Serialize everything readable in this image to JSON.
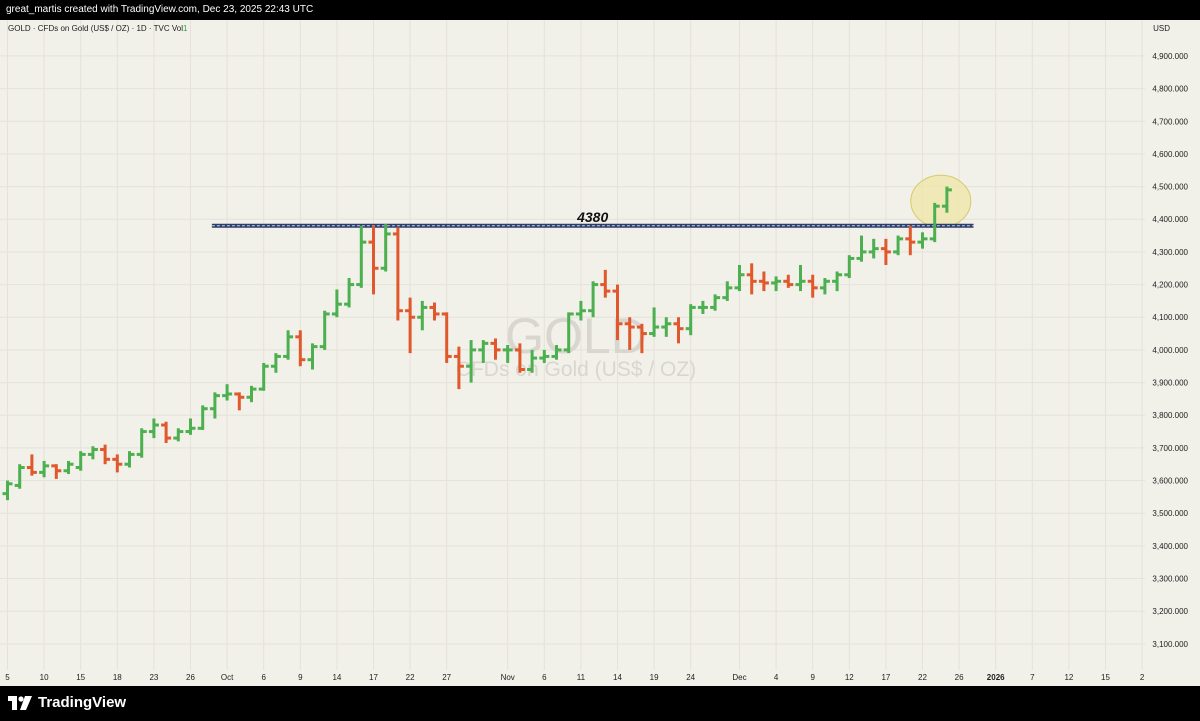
{
  "header": {
    "attribution": "great_martis created with TradingView.com, Dec 23, 2025 22:43 UTC"
  },
  "legend": {
    "text": "GOLD · CFDs on Gold (US$ / OZ) · 1D · TVC  Vol",
    "vol_mark": "1"
  },
  "currency": "USD",
  "watermark": {
    "symbol": "GOLD",
    "description": "CFDs on Gold (US$ / OZ)"
  },
  "footer": {
    "brand": "TradingView"
  },
  "colors": {
    "up": "#4caf50",
    "down": "#e0582b",
    "level_line": "#2c3e6b",
    "highlight": "#efe7a6",
    "background": "#f1f0e9"
  },
  "chart_data": {
    "type": "ohlc",
    "symbol": "GOLD",
    "interval": "1D",
    "y_axis": {
      "ticks": [
        3100,
        3200,
        3300,
        3400,
        3500,
        3600,
        3700,
        3800,
        3900,
        4000,
        4100,
        4200,
        4300,
        4400,
        4500,
        4600,
        4700,
        4800,
        4900
      ],
      "tick_labels": [
        "3,100.000",
        "3,200.000",
        "3,300.000",
        "3,400.000",
        "3,500.000",
        "3,600.000",
        "3,700.000",
        "3,800.000",
        "3,900.000",
        "4,000.000",
        "4,100.000",
        "4,200.000",
        "4,300.000",
        "4,400.000",
        "4,500.000",
        "4,600.000",
        "4,700.000",
        "4,800.000",
        "4,900.000"
      ],
      "ylim": [
        3020,
        5010
      ]
    },
    "x_axis": {
      "ticks": [
        {
          "label": "5",
          "index": 0
        },
        {
          "label": "10",
          "index": 3
        },
        {
          "label": "15",
          "index": 6
        },
        {
          "label": "18",
          "index": 9
        },
        {
          "label": "23",
          "index": 12
        },
        {
          "label": "26",
          "index": 15
        },
        {
          "label": "Oct",
          "index": 18
        },
        {
          "label": "6",
          "index": 21
        },
        {
          "label": "9",
          "index": 24
        },
        {
          "label": "14",
          "index": 27
        },
        {
          "label": "17",
          "index": 30
        },
        {
          "label": "22",
          "index": 33
        },
        {
          "label": "27",
          "index": 36
        },
        {
          "label": "Nov",
          "index": 41
        },
        {
          "label": "6",
          "index": 44
        },
        {
          "label": "11",
          "index": 47
        },
        {
          "label": "14",
          "index": 50
        },
        {
          "label": "19",
          "index": 53
        },
        {
          "label": "24",
          "index": 56
        },
        {
          "label": "Dec",
          "index": 60
        },
        {
          "label": "4",
          "index": 63
        },
        {
          "label": "9",
          "index": 66
        },
        {
          "label": "12",
          "index": 69
        },
        {
          "label": "17",
          "index": 72
        },
        {
          "label": "22",
          "index": 75
        },
        {
          "label": "26",
          "index": 78
        },
        {
          "label": "2026",
          "index": 81
        },
        {
          "label": "7",
          "index": 84
        },
        {
          "label": "12",
          "index": 87
        },
        {
          "label": "15",
          "index": 90
        },
        {
          "label": "2",
          "index": 93
        }
      ]
    },
    "bars": [
      {
        "date": "Sep 5",
        "o": 3560,
        "h": 3600,
        "l": 3540,
        "c": 3590
      },
      {
        "date": "Sep 8",
        "o": 3585,
        "h": 3650,
        "l": 3575,
        "c": 3640
      },
      {
        "date": "Sep 9",
        "o": 3640,
        "h": 3680,
        "l": 3615,
        "c": 3625
      },
      {
        "date": "Sep 10",
        "o": 3625,
        "h": 3660,
        "l": 3610,
        "c": 3645
      },
      {
        "date": "Sep 11",
        "o": 3645,
        "h": 3650,
        "l": 3605,
        "c": 3630
      },
      {
        "date": "Sep 12",
        "o": 3630,
        "h": 3660,
        "l": 3620,
        "c": 3650
      },
      {
        "date": "Sep 15",
        "o": 3640,
        "h": 3690,
        "l": 3630,
        "c": 3680
      },
      {
        "date": "Sep 16",
        "o": 3680,
        "h": 3705,
        "l": 3665,
        "c": 3695
      },
      {
        "date": "Sep 17",
        "o": 3695,
        "h": 3710,
        "l": 3650,
        "c": 3665
      },
      {
        "date": "Sep 18",
        "o": 3665,
        "h": 3680,
        "l": 3625,
        "c": 3650
      },
      {
        "date": "Sep 19",
        "o": 3650,
        "h": 3690,
        "l": 3640,
        "c": 3680
      },
      {
        "date": "Sep 22",
        "o": 3680,
        "h": 3760,
        "l": 3670,
        "c": 3750
      },
      {
        "date": "Sep 23",
        "o": 3750,
        "h": 3790,
        "l": 3730,
        "c": 3770
      },
      {
        "date": "Sep 24",
        "o": 3770,
        "h": 3780,
        "l": 3715,
        "c": 3730
      },
      {
        "date": "Sep 25",
        "o": 3730,
        "h": 3760,
        "l": 3720,
        "c": 3750
      },
      {
        "date": "Sep 26",
        "o": 3750,
        "h": 3790,
        "l": 3740,
        "c": 3760
      },
      {
        "date": "Sep 29",
        "o": 3760,
        "h": 3830,
        "l": 3755,
        "c": 3820
      },
      {
        "date": "Sep 30",
        "o": 3820,
        "h": 3870,
        "l": 3790,
        "c": 3860
      },
      {
        "date": "Oct 1",
        "o": 3860,
        "h": 3895,
        "l": 3845,
        "c": 3865
      },
      {
        "date": "Oct 2",
        "o": 3865,
        "h": 3870,
        "l": 3815,
        "c": 3855
      },
      {
        "date": "Oct 3",
        "o": 3855,
        "h": 3890,
        "l": 3840,
        "c": 3880
      },
      {
        "date": "Oct 6",
        "o": 3880,
        "h": 3960,
        "l": 3875,
        "c": 3950
      },
      {
        "date": "Oct 7",
        "o": 3950,
        "h": 3990,
        "l": 3930,
        "c": 3980
      },
      {
        "date": "Oct 8",
        "o": 3980,
        "h": 4060,
        "l": 3970,
        "c": 4040
      },
      {
        "date": "Oct 9",
        "o": 4040,
        "h": 4060,
        "l": 3950,
        "c": 3970
      },
      {
        "date": "Oct 10",
        "o": 3970,
        "h": 4020,
        "l": 3940,
        "c": 4010
      },
      {
        "date": "Oct 13",
        "o": 4010,
        "h": 4120,
        "l": 4000,
        "c": 4110
      },
      {
        "date": "Oct 14",
        "o": 4110,
        "h": 4185,
        "l": 4100,
        "c": 4140
      },
      {
        "date": "Oct 15",
        "o": 4140,
        "h": 4220,
        "l": 4130,
        "c": 4200
      },
      {
        "date": "Oct 16",
        "o": 4200,
        "h": 4380,
        "l": 4190,
        "c": 4330
      },
      {
        "date": "Oct 17",
        "o": 4330,
        "h": 4380,
        "l": 4170,
        "c": 4250
      },
      {
        "date": "Oct 20",
        "o": 4250,
        "h": 4385,
        "l": 4240,
        "c": 4355
      },
      {
        "date": "Oct 21",
        "o": 4355,
        "h": 4375,
        "l": 4090,
        "c": 4120
      },
      {
        "date": "Oct 22",
        "o": 4120,
        "h": 4160,
        "l": 3990,
        "c": 4100
      },
      {
        "date": "Oct 23",
        "o": 4100,
        "h": 4150,
        "l": 4060,
        "c": 4130
      },
      {
        "date": "Oct 24",
        "o": 4130,
        "h": 4145,
        "l": 4090,
        "c": 4110
      },
      {
        "date": "Oct 27",
        "o": 4110,
        "h": 4115,
        "l": 3960,
        "c": 3980
      },
      {
        "date": "Oct 28",
        "o": 3980,
        "h": 4010,
        "l": 3880,
        "c": 3950
      },
      {
        "date": "Oct 29",
        "o": 3950,
        "h": 4030,
        "l": 3900,
        "c": 4000
      },
      {
        "date": "Oct 30",
        "o": 4000,
        "h": 4030,
        "l": 3960,
        "c": 4020
      },
      {
        "date": "Oct 31",
        "o": 4020,
        "h": 4035,
        "l": 3970,
        "c": 4000
      },
      {
        "date": "Nov 3",
        "o": 4000,
        "h": 4015,
        "l": 3960,
        "c": 4000
      },
      {
        "date": "Nov 4",
        "o": 4000,
        "h": 4020,
        "l": 3930,
        "c": 3940
      },
      {
        "date": "Nov 5",
        "o": 3940,
        "h": 4000,
        "l": 3930,
        "c": 3975
      },
      {
        "date": "Nov 6",
        "o": 3975,
        "h": 4000,
        "l": 3960,
        "c": 3980
      },
      {
        "date": "Nov 7",
        "o": 3980,
        "h": 4015,
        "l": 3970,
        "c": 4000
      },
      {
        "date": "Nov 10",
        "o": 4000,
        "h": 4115,
        "l": 3990,
        "c": 4110
      },
      {
        "date": "Nov 11",
        "o": 4110,
        "h": 4150,
        "l": 4090,
        "c": 4120
      },
      {
        "date": "Nov 12",
        "o": 4120,
        "h": 4210,
        "l": 4100,
        "c": 4200
      },
      {
        "date": "Nov 13",
        "o": 4200,
        "h": 4245,
        "l": 4160,
        "c": 4180
      },
      {
        "date": "Nov 14",
        "o": 4180,
        "h": 4200,
        "l": 4030,
        "c": 4080
      },
      {
        "date": "Nov 17",
        "o": 4080,
        "h": 4100,
        "l": 4000,
        "c": 4070
      },
      {
        "date": "Nov 18",
        "o": 4070,
        "h": 4080,
        "l": 3990,
        "c": 4050
      },
      {
        "date": "Nov 19",
        "o": 4050,
        "h": 4130,
        "l": 4040,
        "c": 4070
      },
      {
        "date": "Nov 20",
        "o": 4070,
        "h": 4100,
        "l": 4040,
        "c": 4080
      },
      {
        "date": "Nov 21",
        "o": 4080,
        "h": 4100,
        "l": 4020,
        "c": 4065
      },
      {
        "date": "Nov 24",
        "o": 4065,
        "h": 4140,
        "l": 4045,
        "c": 4130
      },
      {
        "date": "Nov 25",
        "o": 4130,
        "h": 4150,
        "l": 4110,
        "c": 4130
      },
      {
        "date": "Nov 26",
        "o": 4130,
        "h": 4170,
        "l": 4120,
        "c": 4160
      },
      {
        "date": "Nov 27",
        "o": 4160,
        "h": 4210,
        "l": 4150,
        "c": 4190
      },
      {
        "date": "Nov 28",
        "o": 4190,
        "h": 4260,
        "l": 4180,
        "c": 4230
      },
      {
        "date": "Dec 1",
        "o": 4230,
        "h": 4265,
        "l": 4170,
        "c": 4210
      },
      {
        "date": "Dec 2",
        "o": 4210,
        "h": 4240,
        "l": 4180,
        "c": 4205
      },
      {
        "date": "Dec 3",
        "o": 4205,
        "h": 4225,
        "l": 4180,
        "c": 4210
      },
      {
        "date": "Dec 4",
        "o": 4210,
        "h": 4230,
        "l": 4190,
        "c": 4200
      },
      {
        "date": "Dec 5",
        "o": 4200,
        "h": 4260,
        "l": 4180,
        "c": 4210
      },
      {
        "date": "Dec 8",
        "o": 4210,
        "h": 4230,
        "l": 4160,
        "c": 4190
      },
      {
        "date": "Dec 9",
        "o": 4190,
        "h": 4220,
        "l": 4170,
        "c": 4210
      },
      {
        "date": "Dec 10",
        "o": 4210,
        "h": 4240,
        "l": 4180,
        "c": 4230
      },
      {
        "date": "Dec 11",
        "o": 4230,
        "h": 4290,
        "l": 4220,
        "c": 4280
      },
      {
        "date": "Dec 12",
        "o": 4280,
        "h": 4350,
        "l": 4270,
        "c": 4300
      },
      {
        "date": "Dec 15",
        "o": 4300,
        "h": 4340,
        "l": 4280,
        "c": 4310
      },
      {
        "date": "Dec 16",
        "o": 4310,
        "h": 4340,
        "l": 4260,
        "c": 4300
      },
      {
        "date": "Dec 17",
        "o": 4300,
        "h": 4350,
        "l": 4290,
        "c": 4340
      },
      {
        "date": "Dec 18",
        "o": 4340,
        "h": 4380,
        "l": 4290,
        "c": 4330
      },
      {
        "date": "Dec 19",
        "o": 4330,
        "h": 4360,
        "l": 4310,
        "c": 4340
      },
      {
        "date": "Dec 22",
        "o": 4340,
        "h": 4450,
        "l": 4330,
        "c": 4440
      },
      {
        "date": "Dec 23",
        "o": 4440,
        "h": 4500,
        "l": 4420,
        "c": 4490
      }
    ],
    "annotations": [
      {
        "type": "horizontal_line",
        "value": 4380,
        "label": "4380",
        "from_index": 17,
        "to_index": 80
      },
      {
        "type": "circle_highlight",
        "x_index": 76.5,
        "y_value": 4455
      }
    ],
    "grid": true
  }
}
